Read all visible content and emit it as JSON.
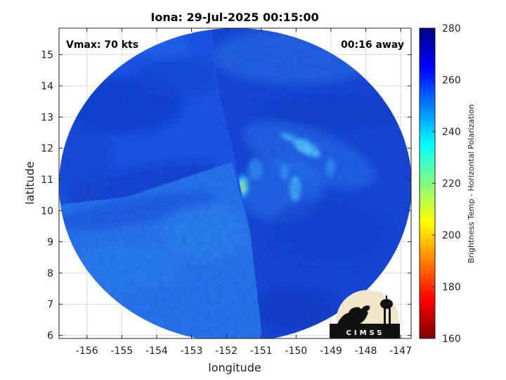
{
  "chart_data": {
    "type": "heatmap",
    "title": "Iona: 29-Jul-2025 00:15:00",
    "xlabel": "longitude",
    "ylabel": "latitude",
    "xlim": [
      -156.8,
      -146.7
    ],
    "ylim": [
      5.9,
      15.85
    ],
    "x_ticks": [
      -156,
      -155,
      -154,
      -153,
      -152,
      -151,
      -150,
      -149,
      -148,
      -147
    ],
    "y_ticks": [
      6,
      7,
      8,
      9,
      10,
      11,
      12,
      13,
      14,
      15
    ],
    "grid": true,
    "colorbar": {
      "label": "Brightness Temp - Horizontal Polarization",
      "range": [
        160,
        280
      ],
      "ticks": [
        280,
        260,
        240,
        220,
        200,
        180,
        160
      ],
      "colormap": "jet"
    },
    "annotations": {
      "vmax": "Vmax: 70 kts",
      "time_away": "00:16 away"
    },
    "features": {
      "swath_center": [
        -151.7,
        10.8
      ],
      "warm_core_center": [
        -151.5,
        10.9
      ],
      "warm_core_min_temp": 228,
      "background_temp_west": 258,
      "background_temp_southwest": 250,
      "background_temp_east": 264
    },
    "logo_text": "CIMSS"
  },
  "colors": {
    "jet_stops": [
      "#00007f",
      "#0000ff",
      "#007fff",
      "#00ffff",
      "#7fff7f",
      "#ffff00",
      "#ff7f00",
      "#ff0000",
      "#7f0000"
    ]
  }
}
